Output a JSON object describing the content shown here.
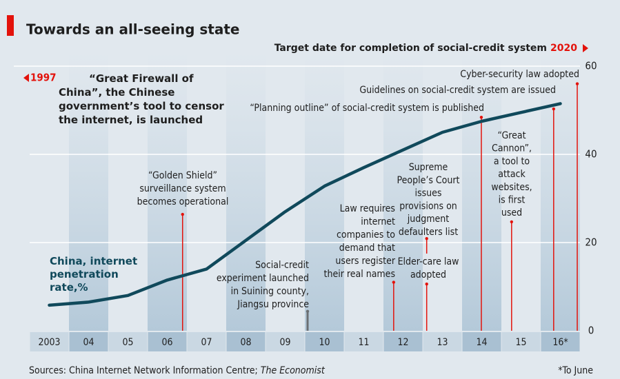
{
  "chart_data": {
    "type": "line",
    "title": "Towards an all-seeing state",
    "subtitle": "Target date for completion of social-credit system",
    "target_year": "2020",
    "intro_year": "1997",
    "intro_text": "“Great Firewall of China”, the Chinese government’s tool to censor the internet, is launched",
    "x": [
      2003,
      2004,
      2005,
      2006,
      2007,
      2008,
      2009,
      2010,
      2011,
      2012,
      2013,
      2014,
      2015,
      2016
    ],
    "series": [
      {
        "name": "China, internet penetration rate,%",
        "color": "#10495b",
        "values": [
          5.8,
          6.5,
          8,
          11.5,
          14,
          20.5,
          27,
          32.8,
          37,
          41,
          45,
          47.5,
          49.5,
          51.5
        ]
      }
    ],
    "xlim": [
      2002.5,
      2016.5
    ],
    "xticks": [
      2003,
      {
        "value": 2004,
        "label": "04"
      },
      {
        "value": 2005,
        "label": "05"
      },
      {
        "value": 2006,
        "label": "06"
      },
      {
        "value": 2007,
        "label": "07"
      },
      {
        "value": 2008,
        "label": "08"
      },
      {
        "value": 2009,
        "label": "09"
      },
      {
        "value": 2010,
        "label": "10"
      },
      {
        "value": 2011,
        "label": "11"
      },
      {
        "value": 2012,
        "label": "12"
      },
      {
        "value": 2013,
        "label": "13"
      },
      {
        "value": 2014,
        "label": "14"
      },
      {
        "value": 2015,
        "label": "15"
      },
      {
        "value": 2016,
        "label": "16*"
      }
    ],
    "ylim": [
      0,
      60
    ],
    "yticks": [
      0,
      20,
      40,
      60
    ],
    "grid": true,
    "annotations": [
      {
        "text": [
          "“Golden Shield”",
          "surveillance system",
          "becomes operational"
        ],
        "x": 2006.39,
        "y": [
          0,
          26.4
        ],
        "color": "#e3120b"
      },
      {
        "text": [
          "Social-credit",
          "experiment launched",
          "in Suining county,",
          "Jiangsu province"
        ],
        "x": 2009.57,
        "y": [
          0,
          4.4
        ],
        "color": "#6b6f73"
      },
      {
        "text": [
          "Law requires",
          "internet",
          "companies to",
          "demand that",
          "users register",
          "their real names"
        ],
        "x": 2011.76,
        "y": [
          0,
          11
        ],
        "color": "#e3120b"
      },
      {
        "text": [
          "Supreme",
          "People’s Court",
          "issues",
          "provisions on",
          "judgment",
          "defaulters list"
        ],
        "x": 2012.6,
        "y": [
          17.5,
          20.9
        ],
        "color": "#e3120b"
      },
      {
        "text": [
          "Elder-care law",
          "adopted"
        ],
        "x": 2012.6,
        "y": [
          0,
          10.6
        ],
        "color": "#e3120b"
      },
      {
        "text": [
          "“Planning outline” of social-credit system is published"
        ],
        "x": 2013.99,
        "y": [
          0,
          48.4
        ],
        "color": "#e3120b"
      },
      {
        "text": [
          "“Great",
          "Cannon”,",
          "a tool to",
          "attack",
          "websites,",
          "is first",
          "used"
        ],
        "x": 2014.76,
        "y": [
          0,
          24.7
        ],
        "color": "#e3120b"
      },
      {
        "text": [
          "Guidelines on social-credit system are issued"
        ],
        "x": 2015.83,
        "y": [
          0,
          50.3
        ],
        "color": "#e3120b"
      },
      {
        "text": [
          "Cyber-security law adopted"
        ],
        "x": 2016.43,
        "y": [
          0,
          56
        ],
        "color": "#e3120b"
      }
    ],
    "source": "Sources: China Internet Network Information Centre; ",
    "source_italic": "The Economist",
    "footnote": "*To June"
  }
}
